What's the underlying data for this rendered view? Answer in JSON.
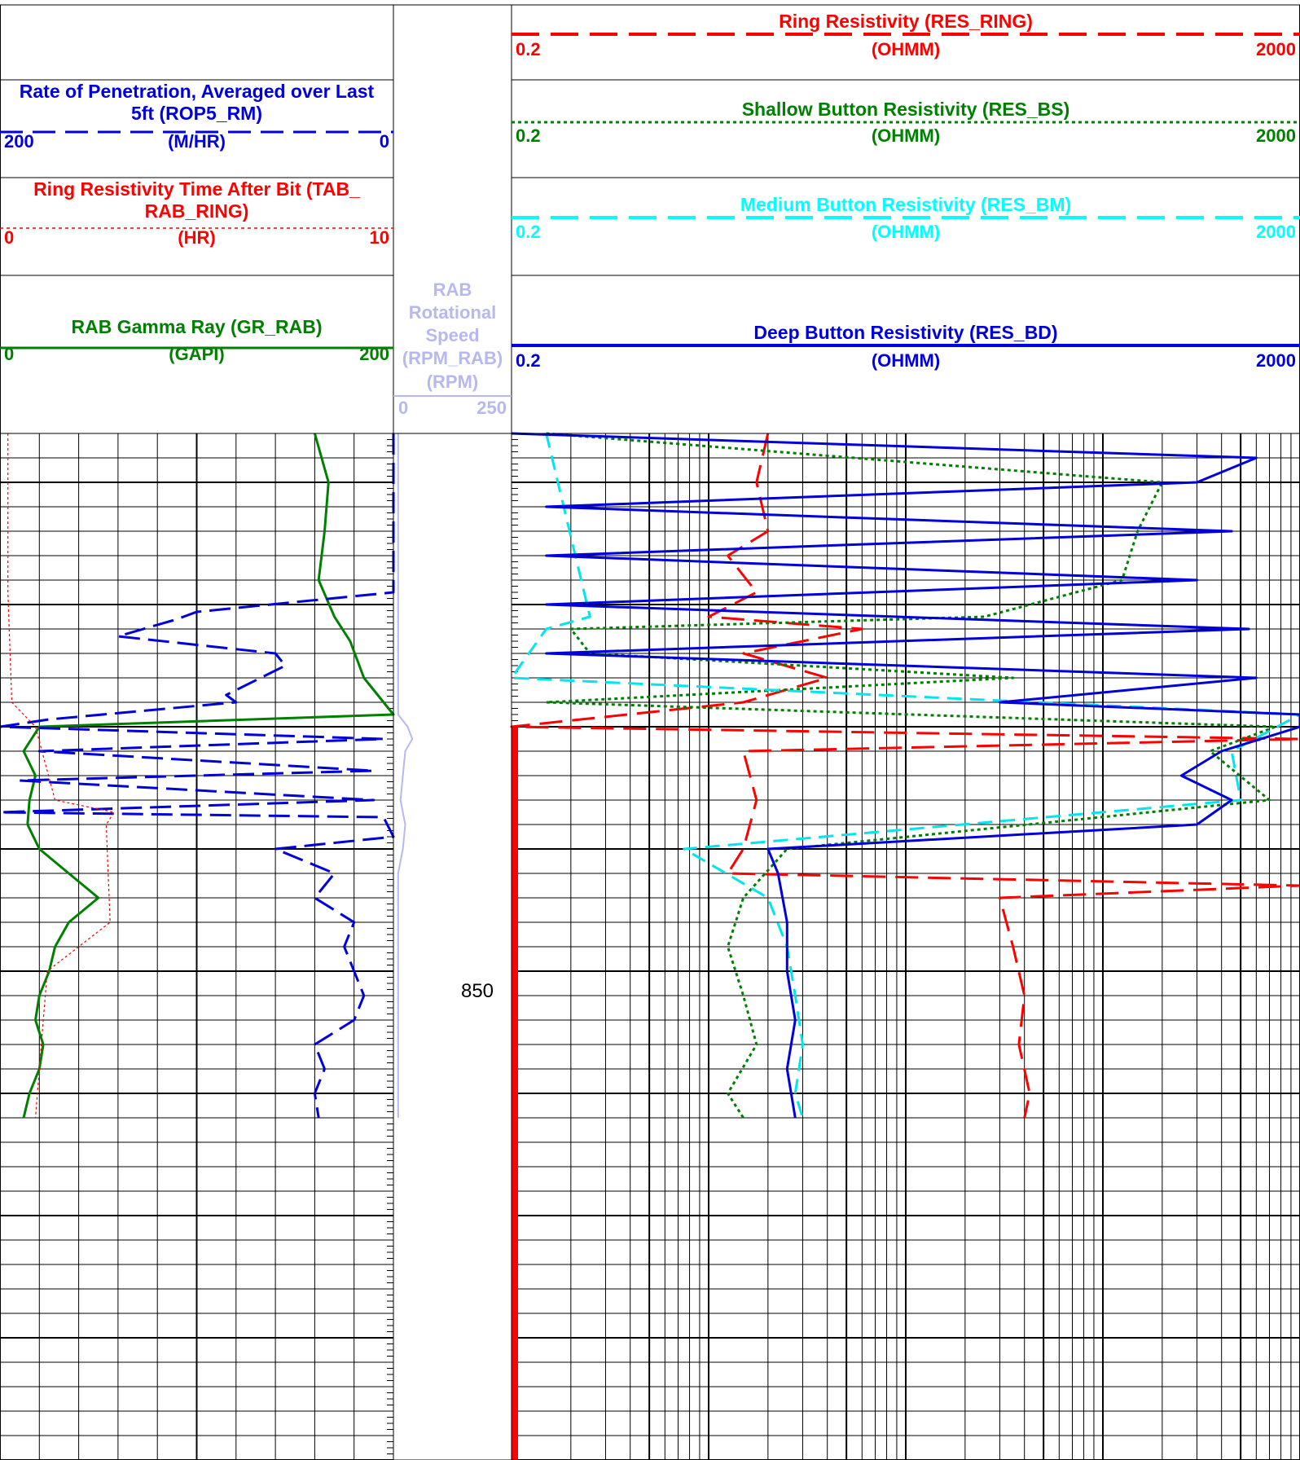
{
  "depth_label": "850",
  "tracks": {
    "left": [
      {
        "key": "rop",
        "title_lines": [
          "Rate of Penetration, Averaged over Last",
          "5ft (ROP5_RM)"
        ],
        "unit": "(M/HR)",
        "min": "200",
        "max": "0",
        "color": "#0000dd",
        "dash": "dashed"
      },
      {
        "key": "tab",
        "title_lines": [
          "Ring Resistivity Time After Bit (TAB_",
          "RAB_RING)"
        ],
        "unit": "(HR)",
        "min": "0",
        "max": "10",
        "color": "#ff0000",
        "dash": "dotted"
      },
      {
        "key": "gr",
        "title_lines": [
          "RAB Gamma Ray (GR_RAB)"
        ],
        "unit": "(GAPI)",
        "min": "0",
        "max": "200",
        "color": "#008000",
        "dash": "solid"
      }
    ],
    "middle": {
      "key": "rpm",
      "title_lines": [
        "RAB",
        "Rotational",
        "Speed",
        "(RPM_RAB)",
        "(RPM)"
      ],
      "min": "0",
      "max": "250",
      "color": "#b8b8f0"
    },
    "right": [
      {
        "key": "res_ring",
        "title": "Ring Resistivity (RES_RING)",
        "unit": "(OHMM)",
        "min": "0.2",
        "max": "2000",
        "color": "#ff0000",
        "dash": "dashed"
      },
      {
        "key": "res_bs",
        "title": "Shallow Button Resistivity (RES_BS)",
        "unit": "(OHMM)",
        "min": "0.2",
        "max": "2000",
        "color": "#008000",
        "dash": "dotted"
      },
      {
        "key": "res_bm",
        "title": "Medium Button Resistivity (RES_BM)",
        "unit": "(OHMM)",
        "min": "0.2",
        "max": "2000",
        "color": "#00ffff",
        "dash": "dashed"
      },
      {
        "key": "res_bd",
        "title": "Deep Button Resistivity (RES_BD)",
        "unit": "(OHMM)",
        "min": "0.2",
        "max": "2000",
        "color": "#0000dd",
        "dash": "solid"
      }
    ]
  },
  "chart_data": {
    "type": "line",
    "depth_axis": {
      "min": 818,
      "max": 860,
      "labeled_depth": 850
    },
    "series": [
      {
        "name": "RAB Gamma Ray (GR_RAB)",
        "unit": "GAPI",
        "x_range": [
          0,
          200
        ],
        "points": [
          [
            818,
            160
          ],
          [
            820,
            167
          ],
          [
            822,
            165
          ],
          [
            824,
            162
          ],
          [
            825.5,
            170
          ],
          [
            826.5,
            178
          ],
          [
            828,
            185
          ],
          [
            829.5,
            200
          ],
          [
            830,
            20
          ],
          [
            831,
            12
          ],
          [
            832,
            18
          ],
          [
            833,
            15
          ],
          [
            834,
            14
          ],
          [
            835,
            20
          ],
          [
            836,
            35
          ],
          [
            837,
            50
          ],
          [
            838,
            35
          ],
          [
            839,
            28
          ],
          [
            840,
            25
          ],
          [
            841,
            20
          ],
          [
            842,
            18
          ],
          [
            843,
            22
          ],
          [
            844,
            20
          ],
          [
            845,
            15
          ],
          [
            846,
            12
          ]
        ]
      },
      {
        "name": "Rate of Penetration, Averaged over Last 5ft (ROP5_RM)",
        "unit": "M/HR",
        "x_range": [
          200,
          0
        ],
        "points": [
          [
            818,
            0
          ],
          [
            824.5,
            0
          ],
          [
            825.3,
            100
          ],
          [
            825.6,
            110
          ],
          [
            826.3,
            140
          ],
          [
            827,
            60
          ],
          [
            827.5,
            55
          ],
          [
            828.7,
            85
          ],
          [
            829,
            80
          ],
          [
            829.7,
            175
          ],
          [
            830,
            200
          ],
          [
            830.5,
            5
          ],
          [
            831,
            180
          ],
          [
            831.8,
            10
          ],
          [
            832.2,
            190
          ],
          [
            833,
            10
          ],
          [
            833.5,
            200
          ],
          [
            833.7,
            5
          ],
          [
            834.5,
            0
          ],
          [
            835,
            60
          ],
          [
            836,
            30
          ],
          [
            837,
            40
          ],
          [
            838,
            20
          ],
          [
            839,
            25
          ],
          [
            840,
            20
          ],
          [
            841,
            15
          ],
          [
            842,
            20
          ],
          [
            843,
            40
          ],
          [
            844,
            35
          ],
          [
            845,
            40
          ],
          [
            846,
            38
          ]
        ]
      },
      {
        "name": "Ring Resistivity Time After Bit (TAB_RAB_RING)",
        "unit": "HR",
        "x_range": [
          0,
          10
        ],
        "points": [
          [
            818,
            0.2
          ],
          [
            824.5,
            0.2
          ],
          [
            829,
            0.3
          ],
          [
            830,
            0.9
          ],
          [
            833,
            1.4
          ],
          [
            833.5,
            2.9
          ],
          [
            834,
            2.7
          ],
          [
            838,
            2.8
          ],
          [
            840,
            1.2
          ],
          [
            846,
            0.9
          ]
        ]
      },
      {
        "name": "RAB Rotational Speed (RPM_RAB)",
        "unit": "RPM",
        "x_range": [
          0,
          250
        ],
        "points": [
          [
            818,
            10
          ],
          [
            829.5,
            10
          ],
          [
            830,
            30
          ],
          [
            830.5,
            40
          ],
          [
            831,
            25
          ],
          [
            832,
            20
          ],
          [
            833,
            15
          ],
          [
            834,
            25
          ],
          [
            835,
            20
          ],
          [
            836,
            10
          ],
          [
            846,
            10
          ]
        ]
      },
      {
        "name": "Ring Resistivity (RES_RING)",
        "unit": "OHMM",
        "x_range": [
          0.2,
          2000
        ],
        "log": true,
        "points": [
          [
            818,
            4
          ],
          [
            820,
            3.5
          ],
          [
            822,
            4
          ],
          [
            823,
            2.5
          ],
          [
            824.5,
            3.5
          ],
          [
            825.5,
            2
          ],
          [
            826,
            12
          ],
          [
            827,
            3
          ],
          [
            828,
            8
          ],
          [
            829,
            3
          ],
          [
            830,
            0.2
          ],
          [
            830.5,
            2500
          ],
          [
            831,
            3
          ],
          [
            833,
            3.5
          ],
          [
            835,
            3
          ],
          [
            836,
            2.5
          ],
          [
            836.5,
            2000
          ],
          [
            837,
            60
          ],
          [
            839,
            70
          ],
          [
            841,
            80
          ],
          [
            843,
            75
          ],
          [
            845,
            85
          ],
          [
            846,
            80
          ]
        ]
      },
      {
        "name": "Shallow Button Resistivity (RES_BS)",
        "unit": "OHMM",
        "x_range": [
          0.2,
          2000
        ],
        "log": true,
        "points": [
          [
            818,
            0.3
          ],
          [
            820,
            400
          ],
          [
            822,
            300
          ],
          [
            824,
            250
          ],
          [
            825.5,
            50
          ],
          [
            826,
            0.4
          ],
          [
            827,
            0.5
          ],
          [
            828,
            70
          ],
          [
            829,
            0.3
          ],
          [
            830,
            1500
          ],
          [
            831,
            700
          ],
          [
            833,
            1400
          ],
          [
            835,
            5
          ],
          [
            837,
            3
          ],
          [
            839,
            2.5
          ],
          [
            841,
            3
          ],
          [
            843,
            3.5
          ],
          [
            845,
            2.5
          ],
          [
            846,
            3
          ]
        ]
      },
      {
        "name": "Medium Button Resistivity (RES_BM)",
        "unit": "OHMM",
        "x_range": [
          0.2,
          2000
        ],
        "log": true,
        "points": [
          [
            818,
            0.3
          ],
          [
            825.5,
            0.5
          ],
          [
            826,
            0.3
          ],
          [
            828,
            0.2
          ],
          [
            829.5,
            2000
          ],
          [
            831,
            900
          ],
          [
            833,
            1000
          ],
          [
            835,
            1.5
          ],
          [
            837,
            4
          ],
          [
            839,
            5
          ],
          [
            841,
            5.5
          ],
          [
            843,
            6
          ],
          [
            845,
            5.5
          ],
          [
            846,
            6
          ]
        ]
      },
      {
        "name": "Deep Button Resistivity (RES_BD)",
        "unit": "OHMM",
        "x_range": [
          0.2,
          2000
        ],
        "log": true,
        "points": [
          [
            818,
            0.2
          ],
          [
            819,
            1200
          ],
          [
            820,
            600
          ],
          [
            821,
            0.3
          ],
          [
            822,
            900
          ],
          [
            823,
            0.3
          ],
          [
            824,
            600
          ],
          [
            825,
            0.3
          ],
          [
            826,
            1100
          ],
          [
            827,
            0.3
          ],
          [
            828,
            1200
          ],
          [
            829,
            60
          ],
          [
            829.5,
            2000
          ],
          [
            830,
            2000
          ],
          [
            831,
            800
          ],
          [
            832,
            500
          ],
          [
            833,
            900
          ],
          [
            834,
            600
          ],
          [
            835,
            4
          ],
          [
            836,
            4.5
          ],
          [
            838,
            5
          ],
          [
            840,
            5
          ],
          [
            842,
            5.5
          ],
          [
            844,
            5
          ],
          [
            846,
            5.5
          ]
        ]
      }
    ]
  }
}
